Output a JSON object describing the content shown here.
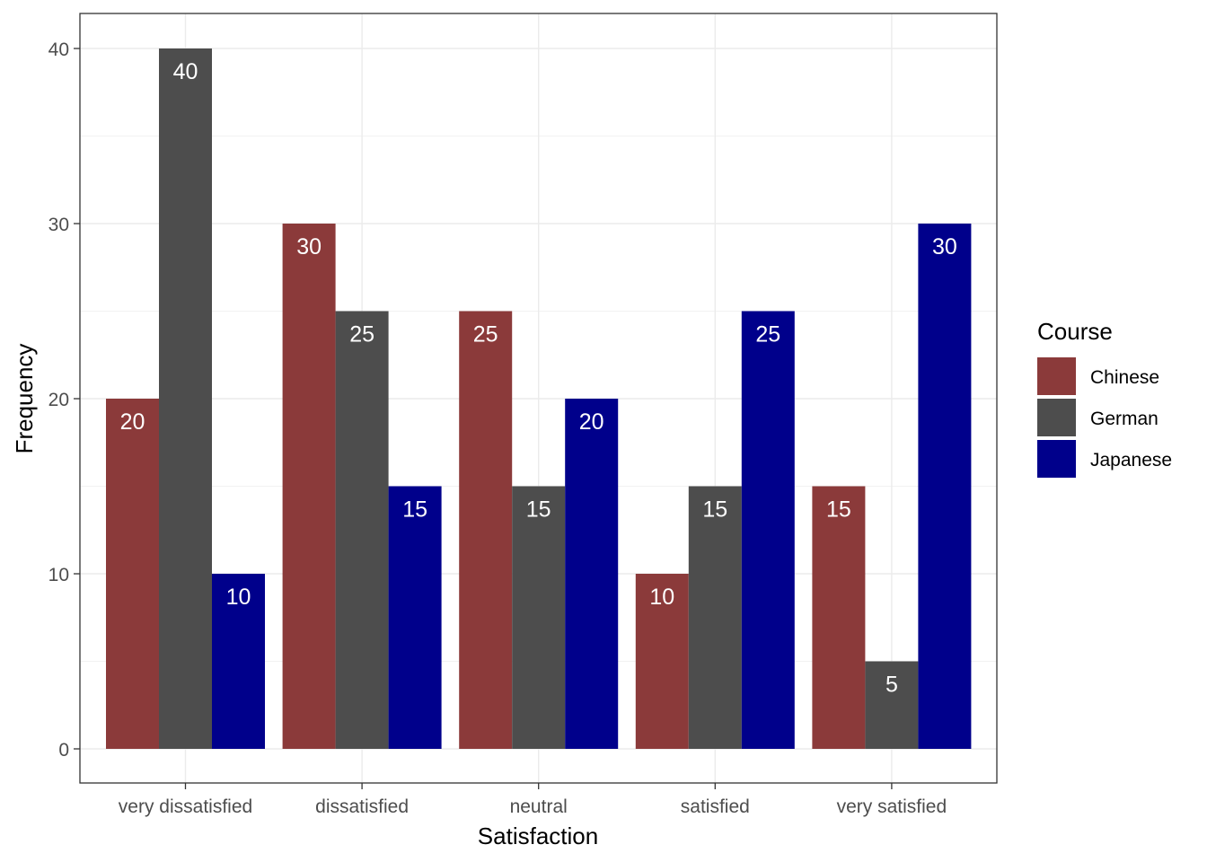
{
  "chart_data": {
    "type": "bar",
    "title": "",
    "xlabel": "Satisfaction",
    "ylabel": "Frequency",
    "categories": [
      "very dissatisfied",
      "dissatisfied",
      "neutral",
      "satisfied",
      "very satisfied"
    ],
    "series": [
      {
        "name": "Chinese",
        "color": "#8B3A3A",
        "values": [
          20,
          30,
          25,
          10,
          15
        ]
      },
      {
        "name": "German",
        "color": "#4D4D4D",
        "values": [
          40,
          25,
          15,
          15,
          5
        ]
      },
      {
        "name": "Japanese",
        "color": "#00008B",
        "values": [
          10,
          15,
          20,
          25,
          30
        ]
      }
    ],
    "yticks": [
      0,
      10,
      20,
      30,
      40
    ],
    "ylim": [
      0,
      40
    ],
    "grid": true,
    "data_labels": true,
    "legend": {
      "title": "Course",
      "position": "right"
    }
  }
}
